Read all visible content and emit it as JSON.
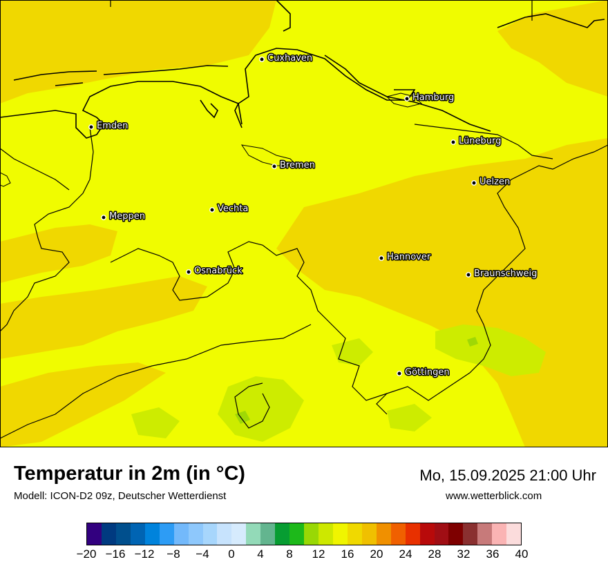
{
  "title": "Temperatur in 2m (in °C)",
  "model": "Modell: ICON-D2 09z, Deutscher Wetterdienst",
  "datetime": "Mo, 15.09.2025 21:00 Uhr",
  "website": "www.wetterblick.com",
  "map": {
    "cities": [
      {
        "name": "Cuxhaven"
      },
      {
        "name": "Hamburg"
      },
      {
        "name": "Emden"
      },
      {
        "name": "Lüneburg"
      },
      {
        "name": "Bremen"
      },
      {
        "name": "Uelzen"
      },
      {
        "name": "Vechta"
      },
      {
        "name": "Meppen"
      },
      {
        "name": "Hannover"
      },
      {
        "name": "Osnabrück"
      },
      {
        "name": "Braunschweig"
      },
      {
        "name": "Göttingen"
      }
    ]
  },
  "legend": {
    "colors": [
      "#32007f",
      "#003a80",
      "#004f8d",
      "#0064b3",
      "#0083dc",
      "#2d9cf5",
      "#73b9fb",
      "#8ec8fc",
      "#a7d6fc",
      "#c7e3fd",
      "#d6ebfd",
      "#93dab8",
      "#63b58f",
      "#079d32",
      "#1db91a",
      "#99d805",
      "#cde800",
      "#f0f500",
      "#f0d900",
      "#f0c000",
      "#f09000",
      "#f06000",
      "#e83000",
      "#b80a0a",
      "#a00e14",
      "#7e0000",
      "#8a3030",
      "#c77a7a",
      "#fab4b4",
      "#fbdcdc"
    ],
    "ticks": [
      "−20",
      "−16",
      "−12",
      "−8",
      "−4",
      "0",
      "4",
      "8",
      "12",
      "16",
      "20",
      "24",
      "28",
      "32",
      "36",
      "40"
    ],
    "min": -20,
    "max": 40
  }
}
